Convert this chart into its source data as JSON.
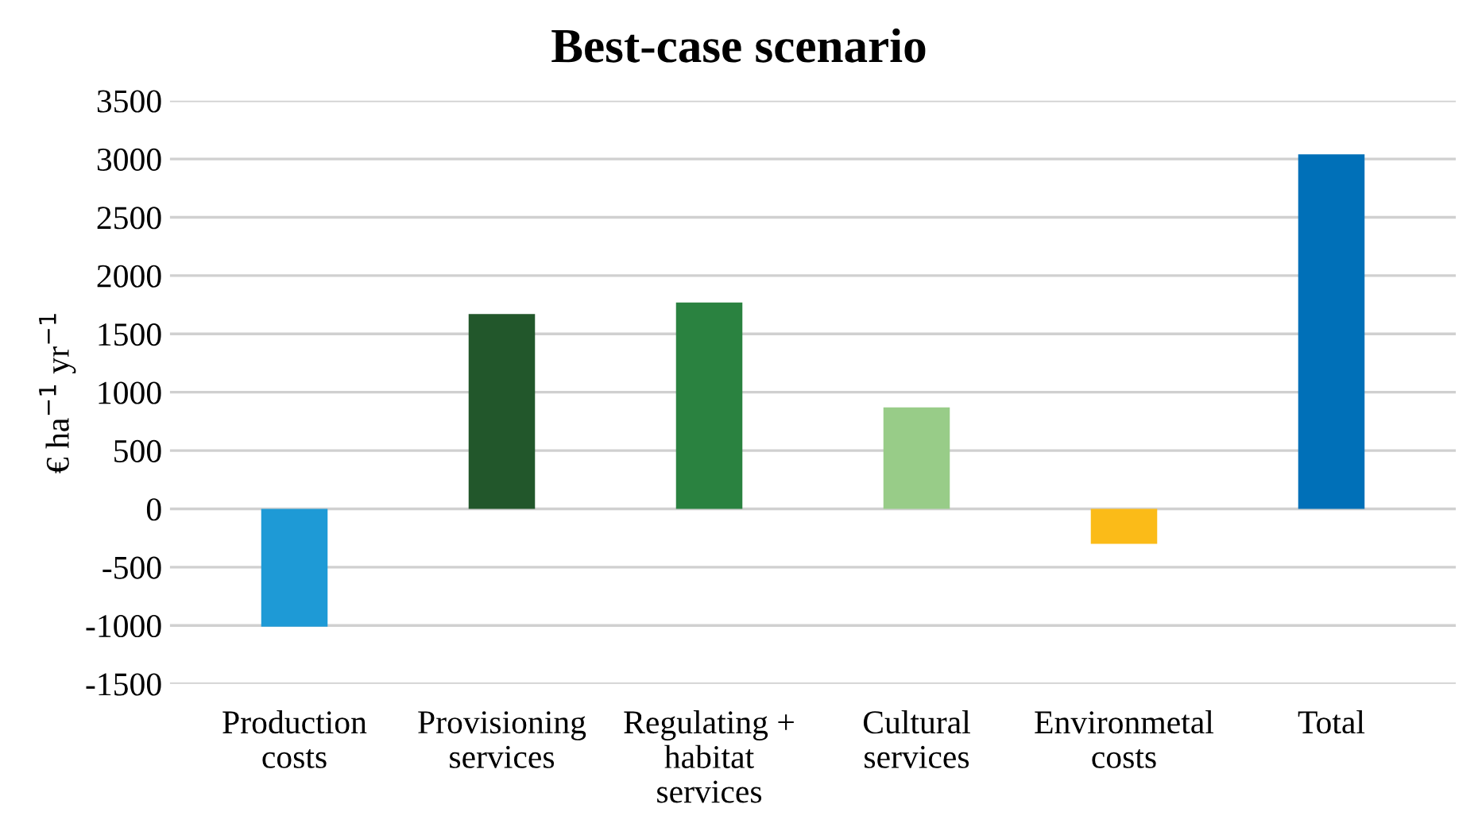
{
  "chart_data": {
    "type": "bar",
    "title": "Best-case scenario",
    "ylabel": "€ ha$^{−1}$ yr$^{−1}$",
    "categories": [
      "Production\ncosts",
      "Provisioning\nservices",
      "Regulating +\nhabitat\nservices",
      "Cultural\nservices",
      "Environmetal\ncosts",
      "Total"
    ],
    "values": [
      -1010,
      1670,
      1770,
      870,
      -300,
      3040
    ],
    "colors": [
      "#1e9ad6",
      "#22572b",
      "#2a8240",
      "#98cc88",
      "#fbbb18",
      "#0070b8"
    ],
    "ylim": [
      -1500,
      3500
    ],
    "yticks": [
      -1500,
      -1000,
      -500,
      0,
      500,
      1000,
      1500,
      2000,
      2500,
      3000,
      3500
    ],
    "grid": "y"
  }
}
